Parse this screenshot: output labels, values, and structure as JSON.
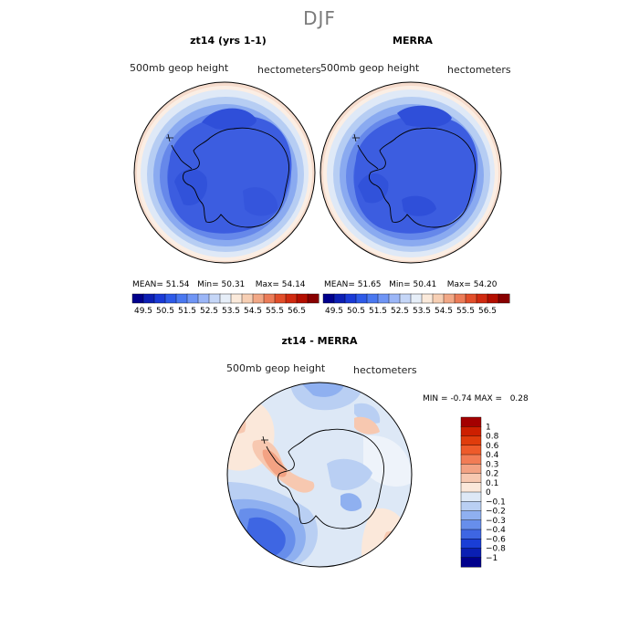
{
  "figure": {
    "season": "DJF"
  },
  "panels": {
    "model": {
      "title": "zt14 (yrs 1-1)",
      "variable": "500mb geop height",
      "units": "hectometers",
      "stats": {
        "mean_label": "MEAN=",
        "mean": "51.54",
        "min_label": "Min=",
        "min": "50.31",
        "max_label": "Max=",
        "max": "54.14"
      }
    },
    "obs": {
      "title": "MERRA",
      "variable": "500mb geop height",
      "units": "hectometers",
      "stats": {
        "mean_label": "MEAN=",
        "mean": "51.65",
        "min_label": "Min=",
        "min": "50.41",
        "max_label": "Max=",
        "max": "54.20"
      }
    },
    "diff": {
      "title": "zt14 - MERRA",
      "variable": "500mb geop height",
      "units": "hectometers",
      "minmax": {
        "min_label": "MIN =",
        "min": "-0.74",
        "max_label": "MAX =",
        "max": "0.28"
      }
    }
  },
  "colorbars": {
    "absolute": {
      "ticks": [
        "49.5",
        "50.5",
        "51.5",
        "52.5",
        "53.5",
        "54.5",
        "55.5",
        "56.5"
      ],
      "colors": [
        "#00008c",
        "#0c1fb4",
        "#1a3ad6",
        "#2e5ae8",
        "#4a78f0",
        "#6f95f5",
        "#9bb6f7",
        "#c5d6f7",
        "#e6eef8",
        "#fbeadb",
        "#f7cfb4",
        "#f2a886",
        "#ec7c58",
        "#e24e2a",
        "#d02a10",
        "#b40e00",
        "#880000"
      ]
    },
    "difference": {
      "ticks": [
        "1",
        "0.8",
        "0.6",
        "0.4",
        "0.3",
        "0.2",
        "0.1",
        "0",
        "−0.1",
        "−0.2",
        "−0.3",
        "−0.4",
        "−0.6",
        "−0.8",
        "−1"
      ],
      "colors": [
        "#a40000",
        "#cd1f00",
        "#e03c0c",
        "#ee5a2a",
        "#f27c55",
        "#f3a283",
        "#f7c8b0",
        "#fbe8da",
        "#dde8f6",
        "#b9cff3",
        "#8fb0f0",
        "#678eeb",
        "#3e66e3",
        "#1a3ed6",
        "#0a1fb3",
        "#00008c"
      ]
    }
  },
  "chart_data": {
    "type": "heatmap",
    "title": "DJF",
    "subplots": [
      {
        "name": "zt14 (yrs 1-1)",
        "field": "500mb geop height",
        "units": "hectometers",
        "mean": 51.54,
        "min": 50.31,
        "max": 54.14,
        "levels": [
          49.5,
          50.5,
          51.5,
          52.5,
          53.5,
          54.5,
          55.5,
          56.5
        ]
      },
      {
        "name": "MERRA",
        "field": "500mb geop height",
        "units": "hectometers",
        "mean": 51.65,
        "min": 50.41,
        "max": 54.2,
        "levels": [
          49.5,
          50.5,
          51.5,
          52.5,
          53.5,
          54.5,
          55.5,
          56.5
        ]
      },
      {
        "name": "zt14 - MERRA",
        "field": "500mb geop height",
        "units": "hectometers",
        "min": -0.74,
        "max": 0.28,
        "levels": [
          -1,
          -0.8,
          -0.6,
          -0.4,
          -0.3,
          -0.2,
          -0.1,
          0,
          0.1,
          0.2,
          0.3,
          0.4,
          0.6,
          0.8,
          1
        ]
      }
    ]
  }
}
